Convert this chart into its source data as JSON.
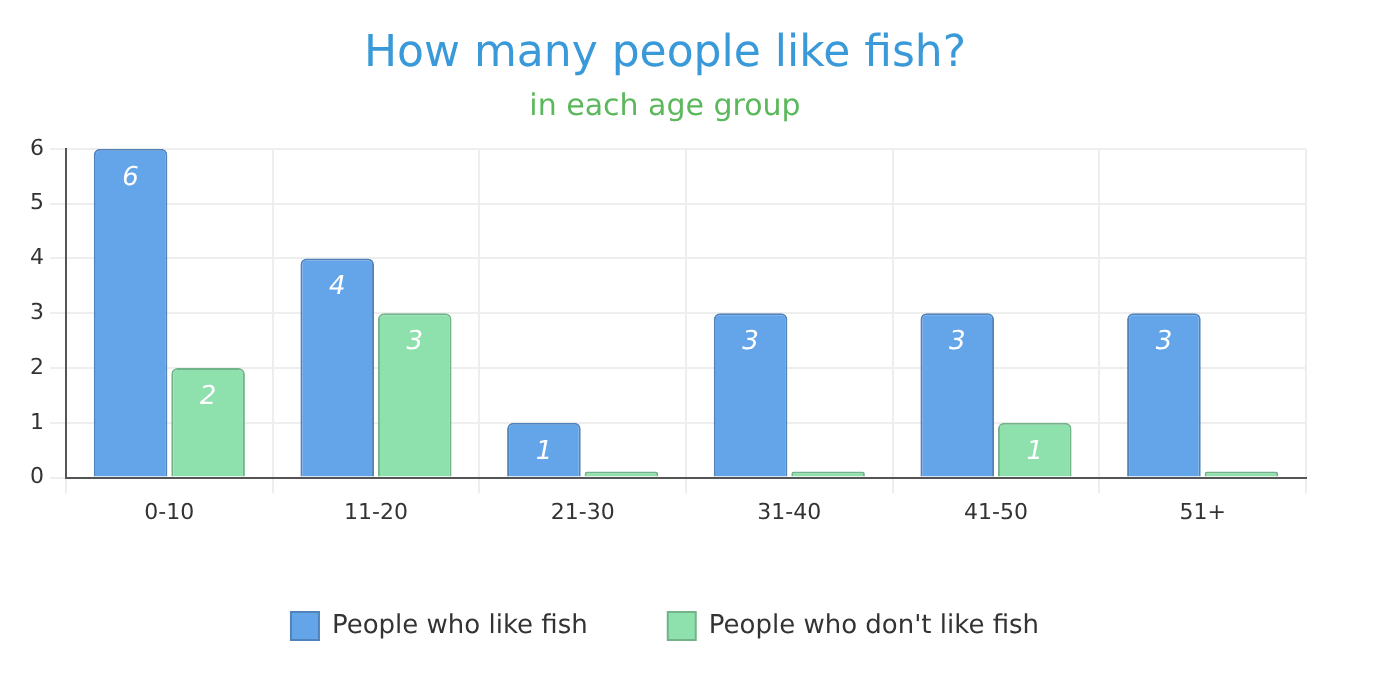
{
  "chart_data": {
    "type": "bar",
    "title": "How many people like fish?",
    "subtitle": "in each age group",
    "categories": [
      "0-10",
      "11-20",
      "21-30",
      "31-40",
      "41-50",
      "51+"
    ],
    "series": [
      {
        "name": "People who like fish",
        "color": "#64a4e8",
        "values": [
          6,
          4,
          1,
          3,
          3,
          3
        ],
        "value_labels": [
          "6",
          "4",
          "1",
          "3",
          "3",
          "3"
        ]
      },
      {
        "name": "People who don't like fish",
        "color": "#8ee0ad",
        "values": [
          2,
          3,
          0,
          0,
          1,
          0
        ],
        "value_labels": [
          "2",
          "3",
          null,
          null,
          "1",
          null
        ]
      }
    ],
    "ylim": [
      0,
      6
    ],
    "yticks": [
      0,
      1,
      2,
      3,
      4,
      5,
      6
    ],
    "grid": true,
    "legend": "bottom"
  }
}
